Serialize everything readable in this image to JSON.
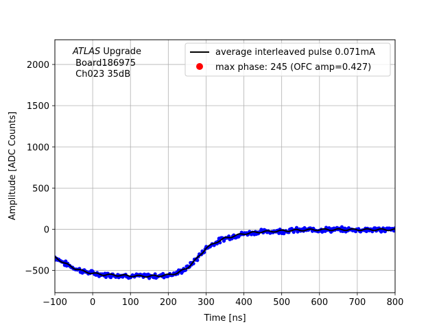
{
  "chart_data": {
    "type": "scatter",
    "xlabel": "Time [ns]",
    "ylabel": "Amplitude [ADC Counts]",
    "xlim": [
      -100,
      800
    ],
    "ylim": [
      -770,
      2300
    ],
    "xticks": [
      -100,
      0,
      100,
      200,
      300,
      400,
      500,
      600,
      700,
      800
    ],
    "yticks": [
      -500,
      0,
      500,
      1000,
      1500,
      2000
    ],
    "xtick_labels": [
      "−100",
      "0",
      "100",
      "200",
      "300",
      "400",
      "500",
      "600",
      "700",
      "800"
    ],
    "ytick_labels": [
      "−500",
      "0",
      "500",
      "1000",
      "1500",
      "2000"
    ],
    "grid": true,
    "legend_placement": "upper-right",
    "annotation": {
      "line1_italic": "ATLAS",
      "line1_rest": " Upgrade",
      "line2": " Board186975",
      "line3": " Ch023 35dB"
    },
    "series": [
      {
        "name": "average interleaved pulse 0.071mA",
        "kind": "line",
        "color": "#000000",
        "x": [
          -100,
          -75,
          -50,
          -25,
          0,
          25,
          50,
          75,
          100,
          125,
          150,
          175,
          200,
          225,
          250,
          275,
          300,
          325,
          350,
          375,
          400,
          425,
          450,
          475,
          500,
          550,
          600,
          650,
          700,
          750,
          800
        ],
        "y": [
          -340,
          -410,
          -470,
          -510,
          -535,
          -550,
          -555,
          -560,
          -565,
          -570,
          -570,
          -565,
          -555,
          -530,
          -470,
          -360,
          -230,
          -160,
          -110,
          -80,
          -55,
          -40,
          -30,
          -25,
          -20,
          -10,
          -5,
          -5,
          -5,
          -5,
          -5
        ]
      },
      {
        "name": "max phase: 245 (OFC amp=0.427)",
        "kind": "scatter",
        "color": "#ff0000",
        "x": [],
        "y": []
      },
      {
        "name": "",
        "kind": "scatter",
        "color": "#0000ff",
        "x": [
          -100,
          -75,
          -50,
          -25,
          0,
          25,
          50,
          75,
          100,
          125,
          150,
          175,
          200,
          225,
          250,
          275,
          300,
          325,
          350,
          375,
          400,
          425,
          450,
          475,
          500,
          550,
          600,
          650,
          700,
          750,
          800
        ],
        "y": [
          -340,
          -410,
          -470,
          -510,
          -535,
          -550,
          -555,
          -560,
          -565,
          -570,
          -570,
          -565,
          -555,
          -530,
          -470,
          -360,
          -230,
          -160,
          -110,
          -80,
          -55,
          -40,
          -30,
          -25,
          -20,
          -10,
          -5,
          -5,
          -5,
          -5,
          -5
        ],
        "scatter_band": 40
      }
    ]
  }
}
